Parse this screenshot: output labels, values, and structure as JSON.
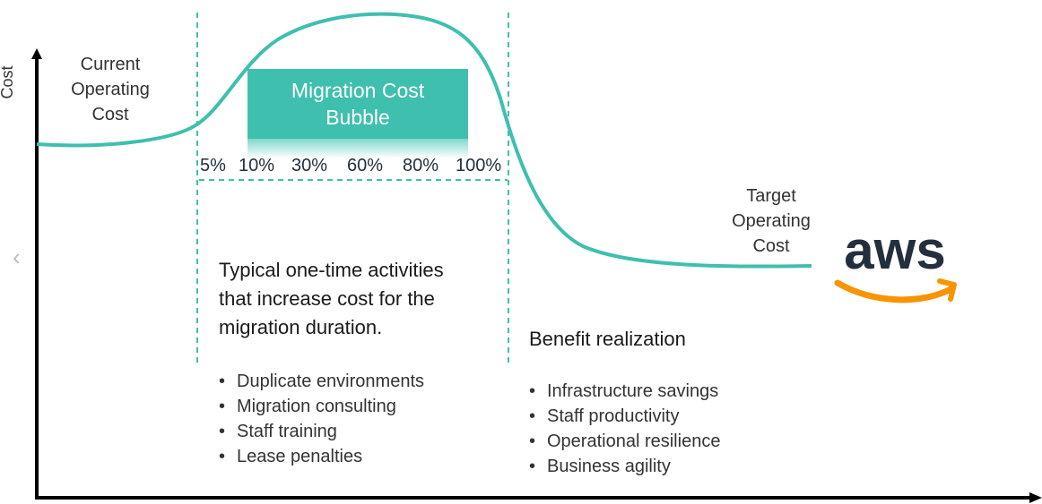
{
  "axis": {
    "y_label": "Cost"
  },
  "labels": {
    "current_cost": [
      "Current",
      "Operating",
      "Cost"
    ],
    "target_cost": [
      "Target",
      "Operating",
      "Cost"
    ]
  },
  "bubble": {
    "line1": "Migration Cost",
    "line2": "Bubble"
  },
  "percentages": [
    "5%",
    "10%",
    "30%",
    "60%",
    "80%",
    "100%"
  ],
  "migration": {
    "heading": [
      "Typical one-time activities",
      "that increase cost for the",
      "migration duration."
    ],
    "items": [
      "Duplicate environments",
      "Migration consulting",
      "Staff training",
      "Lease penalties"
    ]
  },
  "benefit": {
    "heading": "Benefit realization",
    "items": [
      "Infrastructure savings",
      "Staff productivity",
      "Operational resilience",
      "Business agility"
    ]
  },
  "logo": {
    "text": "aws"
  },
  "colors": {
    "curve": "#3fbfad",
    "axis": "#000000",
    "logo_text": "#232f3e",
    "logo_smile": "#f79400"
  }
}
